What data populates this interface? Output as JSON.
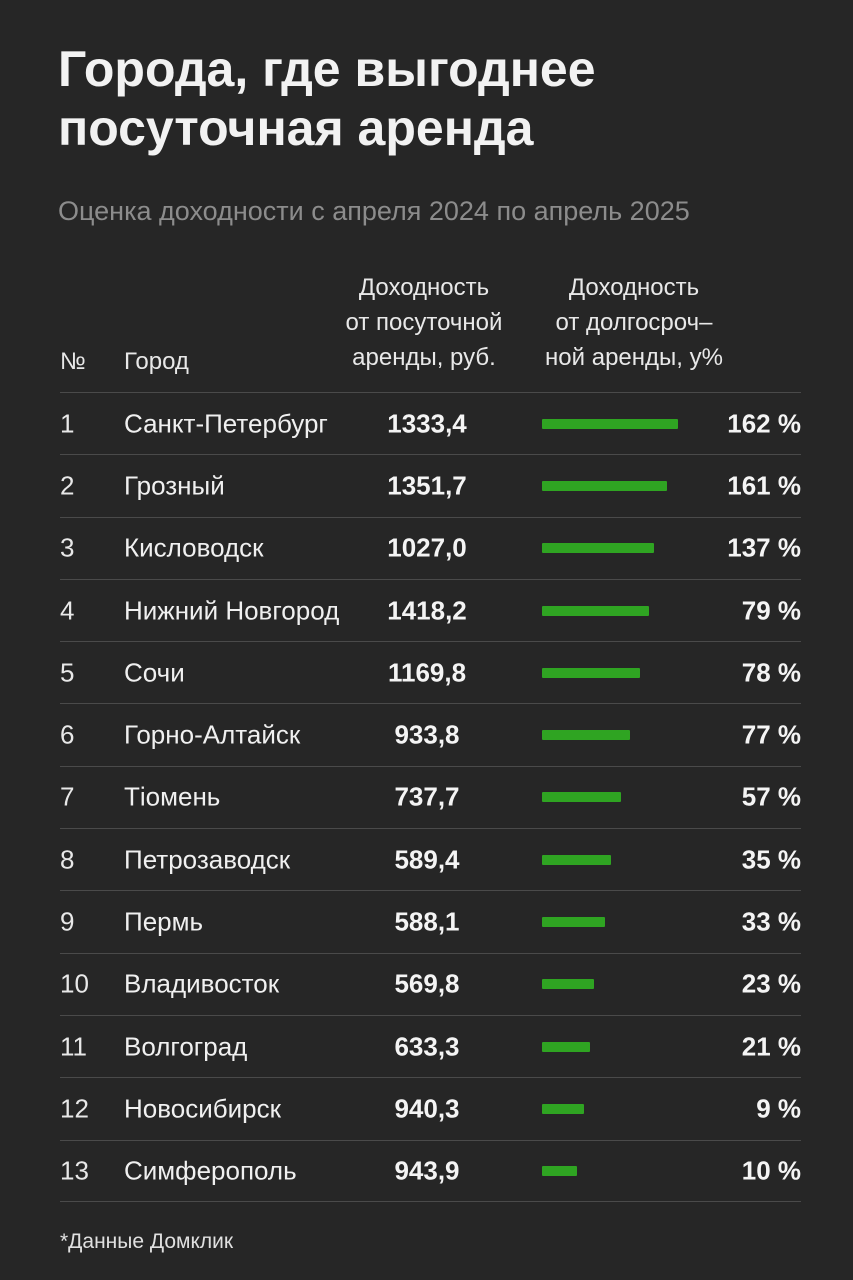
{
  "title_line1": "Города, где выгоднее",
  "title_line2": "посуточная аренда",
  "subtitle": "Оценка доходности с апреля 2024 по апрель 2025",
  "headers": {
    "num": "№",
    "city": "Город",
    "daily": [
      "Доходность",
      "от посуточной",
      "аренды, руб."
    ],
    "longterm": [
      "Доходность",
      "от долгосроч–",
      "ной аренды, у%"
    ]
  },
  "footnote": "*Данные Домклик",
  "colors": {
    "background": "#262626",
    "bar": "#2fa422"
  },
  "chart_data": {
    "type": "table",
    "title": "Города, где выгоднее посуточная аренда",
    "subtitle": "Оценка доходности с апреля 2024 по апрель 2025",
    "columns": [
      "№",
      "Город",
      "Доходность от посуточной аренды, руб.",
      "Доходность от долгосроч– ной аренды, у%"
    ],
    "rows": [
      {
        "num": "1",
        "city": "Санкт-Петербург",
        "daily": "1333,4",
        "percent": 162,
        "percent_label": "162 %"
      },
      {
        "num": "2",
        "city": "Грозный",
        "daily": "1351,7",
        "percent": 161,
        "percent_label": "161 %"
      },
      {
        "num": "3",
        "city": "Кисловодск",
        "daily": "1027,0",
        "percent": 137,
        "percent_label": "137 %"
      },
      {
        "num": "4",
        "city": "Нижний Новгород",
        "daily": "1418,2",
        "percent": 79,
        "percent_label": "79 %"
      },
      {
        "num": "5",
        "city": "Сочи",
        "daily": "1169,8",
        "percent": 78,
        "percent_label": "78 %"
      },
      {
        "num": "6",
        "city": "Горно-Алтайск",
        "daily": "933,8",
        "percent": 77,
        "percent_label": "77 %"
      },
      {
        "num": "7",
        "city": "Тіомень",
        "daily": "737,7",
        "percent": 57,
        "percent_label": "57 %"
      },
      {
        "num": "8",
        "city": "Петрозаводск",
        "daily": "589,4",
        "percent": 35,
        "percent_label": "35 %"
      },
      {
        "num": "9",
        "city": "Пермь",
        "daily": "588,1",
        "percent": 33,
        "percent_label": "33 %"
      },
      {
        "num": "10",
        "city": "Владивосток",
        "daily": "569,8",
        "percent": 23,
        "percent_label": "23 %"
      },
      {
        "num": "11",
        "city": "Волгоград",
        "daily": "633,3",
        "percent": 21,
        "percent_label": "21 %"
      },
      {
        "num": "12",
        "city": "Новосибирск",
        "daily": "940,3",
        "percent": 9,
        "percent_label": "9 %"
      },
      {
        "num": "13",
        "city": "Симферополь",
        "daily": "943,9",
        "percent": 10,
        "percent_label": "10 %"
      }
    ],
    "bar_lengths_relative": [
      1.0,
      0.92,
      0.82,
      0.79,
      0.72,
      0.65,
      0.58,
      0.51,
      0.46,
      0.38,
      0.35,
      0.31,
      0.26
    ]
  }
}
